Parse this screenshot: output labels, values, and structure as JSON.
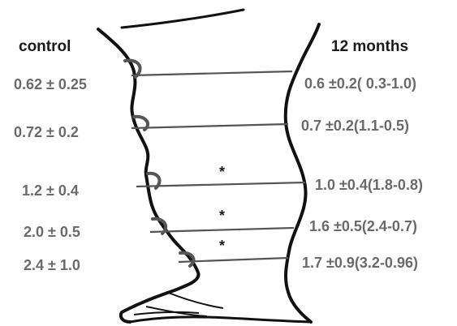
{
  "headers": {
    "left": "control",
    "right": "12 months"
  },
  "levels": [
    {
      "control": "0.62 ±  0.25",
      "months12": "0.6 ±0.2( 0.3-1.0)",
      "significance": ""
    },
    {
      "control": "0.72 ±  0.2",
      "months12": "0.7 ±0.2(1.1-0.5)",
      "significance": ""
    },
    {
      "control": "1.2 ± 0.4",
      "months12": "1.0 ±0.4(1.8-0.8)",
      "significance": "*"
    },
    {
      "control": "2.0 ± 0.5",
      "months12": "1.6 ±0.5(2.4-0.7)",
      "significance": "*"
    },
    {
      "control": "2.4 ± 1.0",
      "months12": "1.7 ±0.9(3.2-0.96)",
      "significance": "*"
    }
  ],
  "colors": {
    "outline": "#111111",
    "measure_line": "#555555",
    "marker": "#555555",
    "label_text": "#6a6a6a",
    "header_text": "#1a1a1a"
  }
}
